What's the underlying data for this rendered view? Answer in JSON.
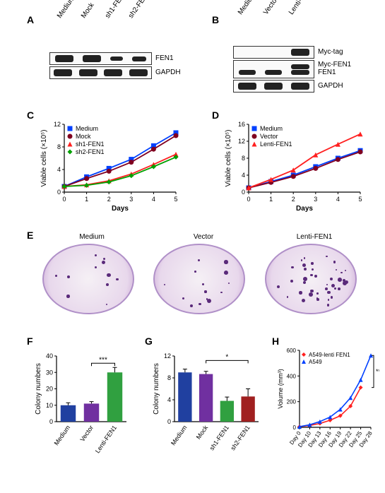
{
  "panelA": {
    "label": "A",
    "lanes": [
      "Medium",
      "Mock",
      "sh1-FEN1",
      "sh2-FEN1"
    ],
    "rows": [
      {
        "name": "FEN1",
        "intensities": [
          1.0,
          1.0,
          0.35,
          0.4
        ]
      },
      {
        "name": "GAPDH",
        "intensities": [
          1.0,
          1.0,
          1.0,
          1.0
        ]
      }
    ]
  },
  "panelB": {
    "label": "B",
    "lanes": [
      "Medium",
      "Vector",
      "Lenti-FEN1"
    ],
    "rows_upper": {
      "name": "Myc-tag",
      "intensities": [
        0,
        0,
        1.0
      ]
    },
    "rows_mid": {
      "name_top": "Myc-FEN1",
      "name_bot": "FEN1",
      "top": [
        0,
        0,
        1.0
      ],
      "bot": [
        0.9,
        0.9,
        1.0
      ]
    },
    "rows_lower": {
      "name": "GAPDH",
      "intensities": [
        1.0,
        1.0,
        1.0
      ]
    }
  },
  "panelC": {
    "label": "C",
    "type": "line",
    "x": [
      0,
      1,
      2,
      3,
      4,
      5
    ],
    "xlim": [
      0,
      5
    ],
    "ylim": [
      0,
      12
    ],
    "yticks": [
      0,
      4,
      8,
      12
    ],
    "xlabel": "Days",
    "ylabel": "Viable cells (×10⁵)",
    "series": [
      {
        "name": "Medium",
        "color": "#0040ff",
        "marker": "square",
        "y": [
          1.0,
          2.7,
          4.2,
          5.8,
          8.2,
          10.5
        ]
      },
      {
        "name": "Mock",
        "color": "#800020",
        "marker": "circle",
        "y": [
          1.0,
          2.4,
          3.7,
          5.3,
          7.6,
          10.0
        ]
      },
      {
        "name": "sh1-FEN1",
        "color": "#ff2020",
        "marker": "triangle",
        "y": [
          1.0,
          1.3,
          2.0,
          3.2,
          4.9,
          6.7
        ]
      },
      {
        "name": "sh2-FEN1",
        "color": "#00a000",
        "marker": "diamond",
        "y": [
          1.0,
          1.2,
          1.8,
          2.9,
          4.5,
          6.2
        ]
      }
    ]
  },
  "panelD": {
    "label": "D",
    "type": "line",
    "x": [
      0,
      1,
      2,
      3,
      4,
      5
    ],
    "xlim": [
      0,
      5
    ],
    "ylim": [
      0,
      16
    ],
    "yticks": [
      0,
      4,
      8,
      12,
      16
    ],
    "xlabel": "Days",
    "ylabel": "Viable cells (×10⁵)",
    "series": [
      {
        "name": "Medium",
        "color": "#0040ff",
        "marker": "square",
        "y": [
          1.0,
          2.5,
          4.0,
          6.0,
          8.0,
          9.8
        ]
      },
      {
        "name": "Vector",
        "color": "#800020",
        "marker": "circle",
        "y": [
          1.0,
          2.3,
          3.7,
          5.6,
          7.7,
          9.5
        ]
      },
      {
        "name": "Lenti-FEN1",
        "color": "#ff2020",
        "marker": "triangle",
        "y": [
          1.0,
          3.0,
          5.2,
          8.8,
          11.3,
          13.7
        ]
      }
    ]
  },
  "panelE": {
    "label": "E",
    "conditions": [
      "Medium",
      "Vector",
      "Lenti-FEN1"
    ],
    "dot_counts": [
      12,
      14,
      40
    ]
  },
  "panelF": {
    "label": "F",
    "type": "bar",
    "ylabel": "Colony numbers",
    "ylim": [
      0,
      40
    ],
    "yticks": [
      0,
      10,
      20,
      30,
      40
    ],
    "categories": [
      "Medium",
      "Vector",
      "Lenti-FEN1"
    ],
    "values": [
      10,
      11,
      30
    ],
    "errors": [
      1.5,
      1.2,
      3
    ],
    "colors": [
      "#2040a0",
      "#7030a0",
      "#30a040"
    ],
    "sig": "***"
  },
  "panelG": {
    "label": "G",
    "type": "bar",
    "ylabel": "Colony numbers",
    "ylim": [
      0,
      12
    ],
    "yticks": [
      0,
      4,
      8,
      12
    ],
    "categories": [
      "Medium",
      "Mock",
      "sh1-FEN1",
      "sh2-FEN1"
    ],
    "values": [
      9.0,
      8.7,
      3.8,
      4.6
    ],
    "errors": [
      0.6,
      0.5,
      0.7,
      1.4
    ],
    "colors": [
      "#2040a0",
      "#7030a0",
      "#30a040",
      "#a02020"
    ],
    "sig": "*"
  },
  "panelH": {
    "label": "H",
    "type": "line",
    "xlabel_ticks": [
      "Day 0",
      "Day 10",
      "Day 13",
      "Day 16",
      "Day 19",
      "Day 22",
      "Day 25",
      "Day 28"
    ],
    "ylabel": "Volume (mm³)",
    "ylim": [
      0,
      600
    ],
    "yticks": [
      0,
      200,
      400,
      600
    ],
    "series": [
      {
        "name": "A549-lenti FEN1",
        "color": "#ff2020",
        "marker": "diamond",
        "y": [
          5,
          15,
          30,
          55,
          90,
          165,
          310,
          null
        ]
      },
      {
        "name": "A549",
        "color": "#0040ff",
        "marker": "triangle",
        "y": [
          5,
          20,
          45,
          80,
          140,
          230,
          370,
          560
        ]
      }
    ],
    "sig": "**"
  }
}
